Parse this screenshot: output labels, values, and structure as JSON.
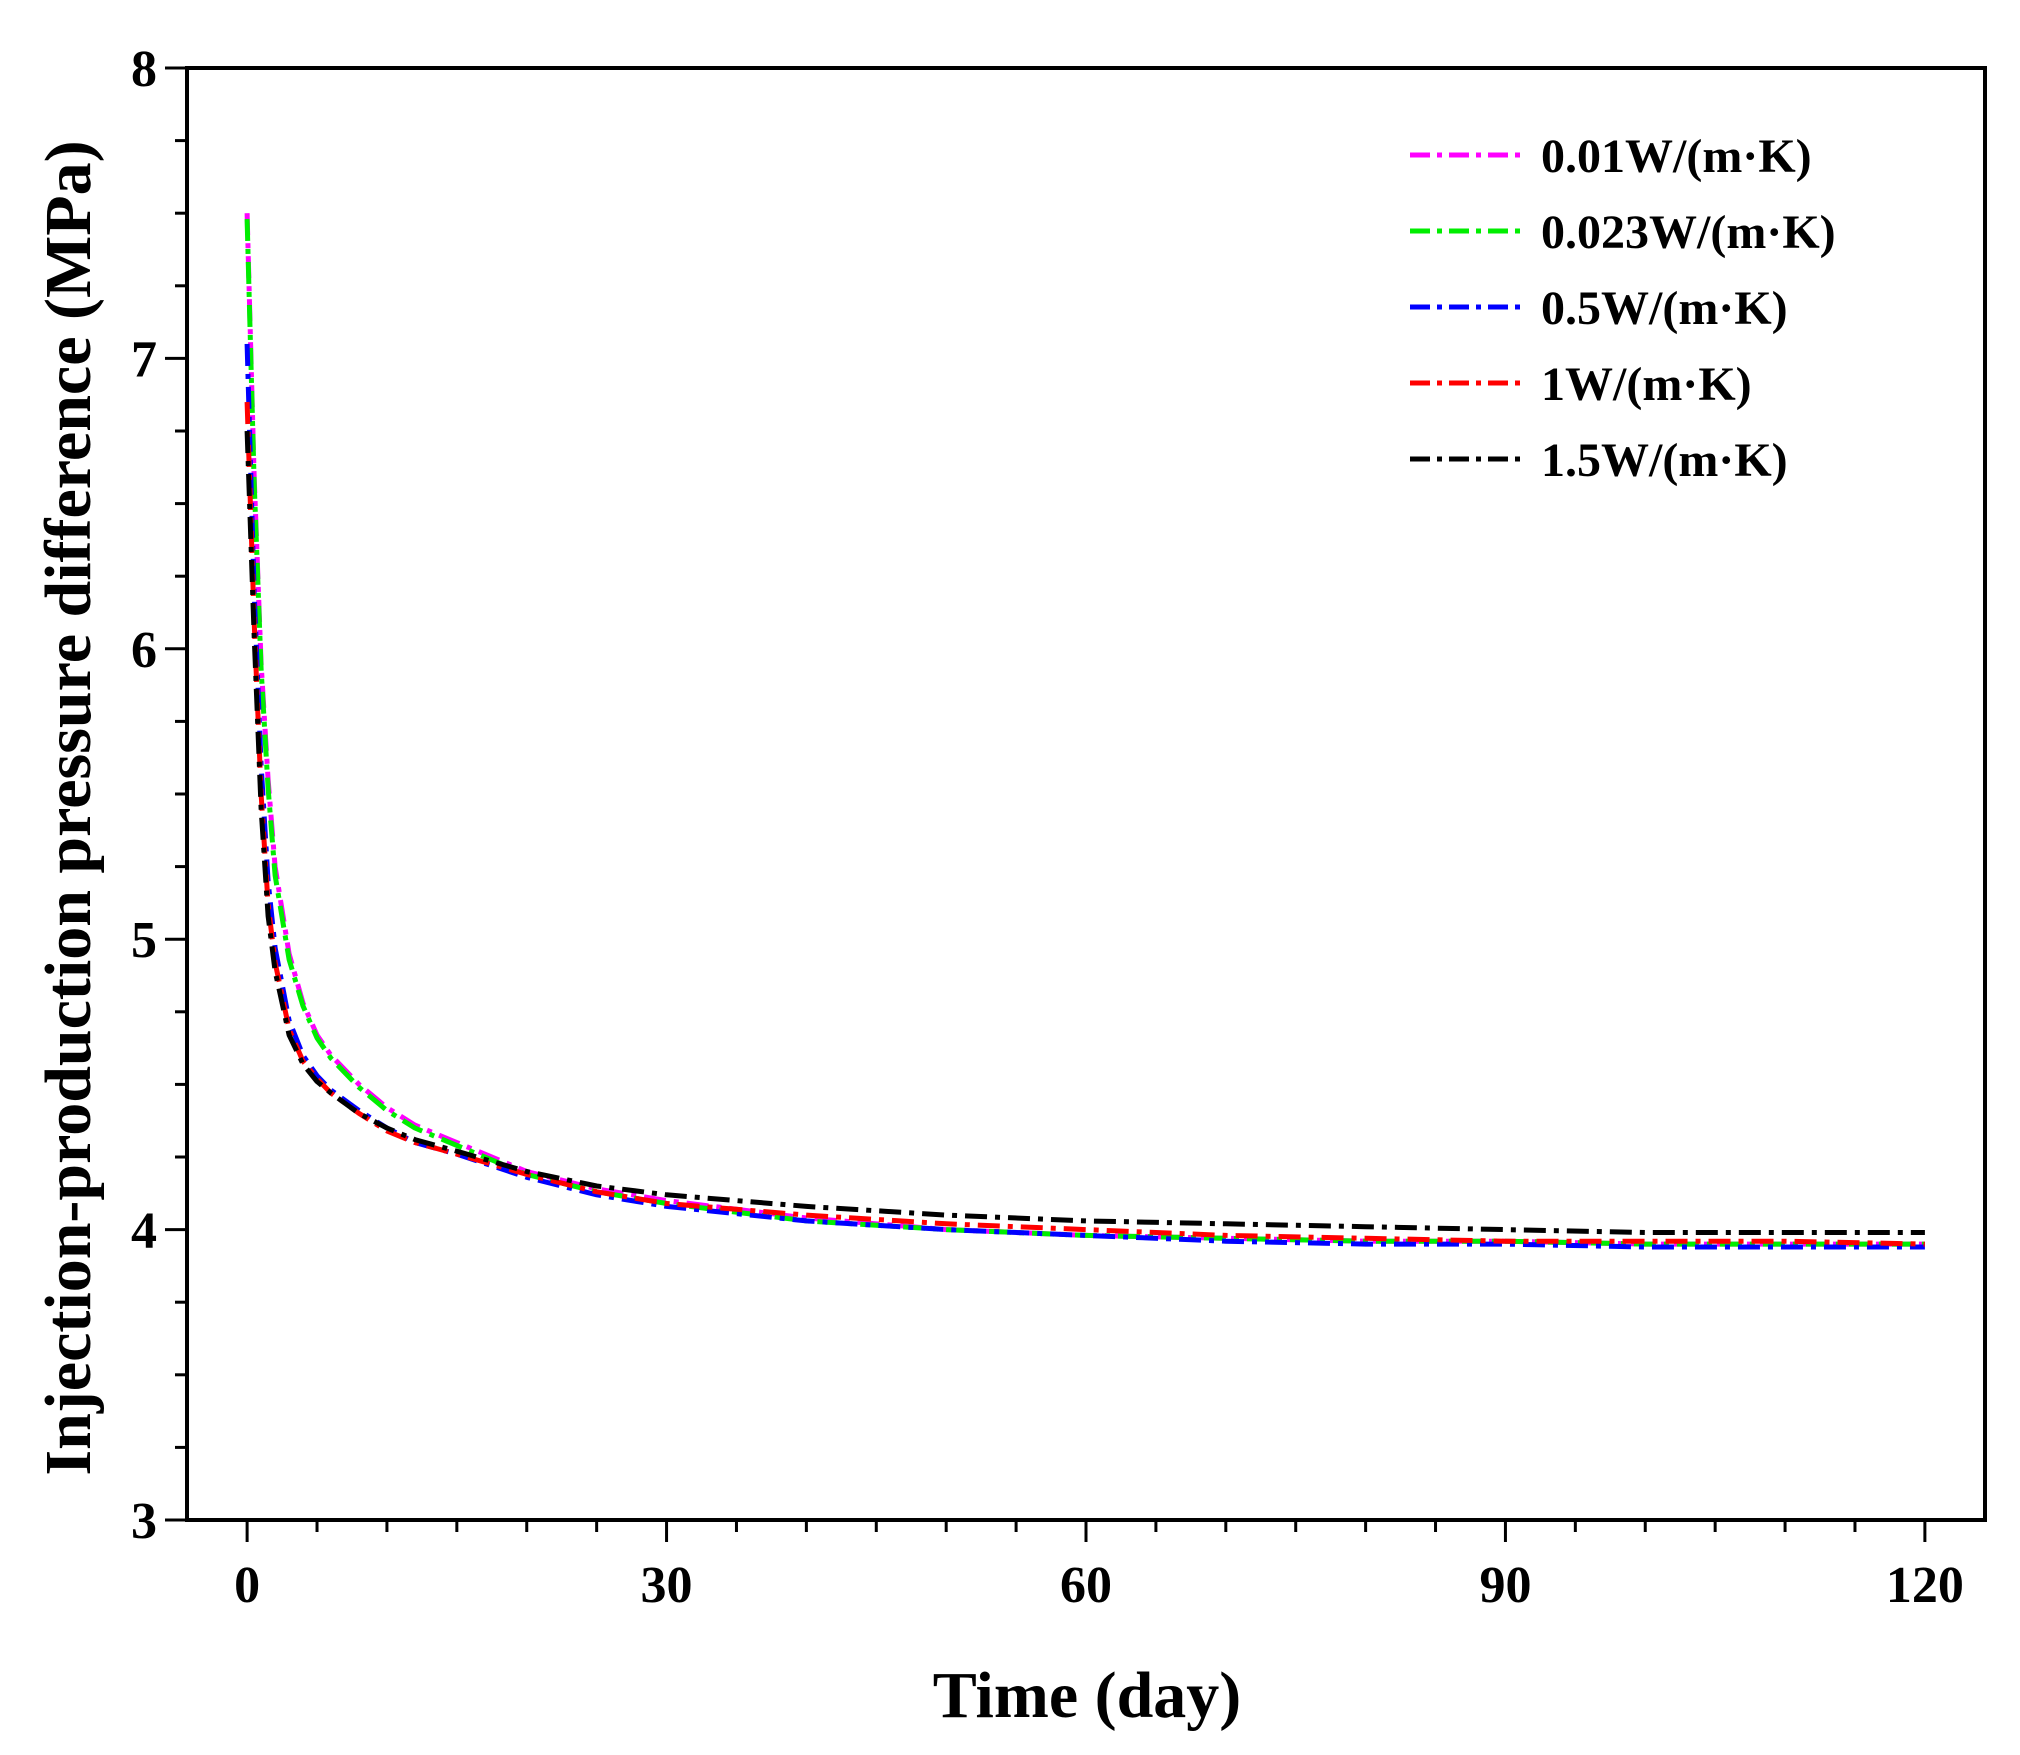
{
  "chart_data": {
    "type": "line",
    "title": "",
    "xlabel": "Time (day)",
    "ylabel": "Injection-production pressure difference (MPa)",
    "xlim": [
      -4.3,
      124.3
    ],
    "ylim": [
      3,
      8
    ],
    "xticks": [
      0,
      30,
      60,
      90,
      120
    ],
    "yticks": [
      3,
      4,
      5,
      6,
      7,
      8
    ],
    "grid": false,
    "legend_position": "top-right",
    "x": [
      0,
      0.5,
      1,
      1.5,
      2,
      3,
      4,
      5,
      6,
      8,
      10,
      12,
      15,
      20,
      25,
      30,
      40,
      50,
      60,
      70,
      80,
      90,
      100,
      110,
      120
    ],
    "series": [
      {
        "name": "0.01W/(m·K)",
        "color": "#ff00ff",
        "values": [
          7.5,
          6.6,
          5.95,
          5.55,
          5.25,
          4.95,
          4.78,
          4.67,
          4.6,
          4.5,
          4.42,
          4.36,
          4.3,
          4.2,
          4.14,
          4.1,
          4.04,
          4.0,
          3.98,
          3.97,
          3.96,
          3.96,
          3.95,
          3.95,
          3.95
        ]
      },
      {
        "name": "0.023W/(m·K)",
        "color": "#00ee00",
        "values": [
          7.48,
          6.58,
          5.93,
          5.52,
          5.22,
          4.93,
          4.77,
          4.66,
          4.59,
          4.49,
          4.41,
          4.35,
          4.29,
          4.19,
          4.13,
          4.09,
          4.03,
          4.0,
          3.98,
          3.97,
          3.96,
          3.96,
          3.95,
          3.95,
          3.95
        ]
      },
      {
        "name": "0.5W/(m·K)",
        "color": "#0000ff",
        "values": [
          7.05,
          6.2,
          5.6,
          5.2,
          4.97,
          4.72,
          4.6,
          4.53,
          4.48,
          4.41,
          4.35,
          4.3,
          4.26,
          4.18,
          4.12,
          4.08,
          4.03,
          4.0,
          3.98,
          3.96,
          3.95,
          3.95,
          3.94,
          3.94,
          3.94
        ]
      },
      {
        "name": "1W/(m·K)",
        "color": "#ff0000",
        "values": [
          6.85,
          6.1,
          5.5,
          5.12,
          4.92,
          4.69,
          4.58,
          4.52,
          4.47,
          4.4,
          4.34,
          4.3,
          4.26,
          4.19,
          4.13,
          4.09,
          4.05,
          4.02,
          4.0,
          3.98,
          3.97,
          3.96,
          3.96,
          3.96,
          3.95
        ]
      },
      {
        "name": "1.5W/(m·K)",
        "color": "#000000",
        "values": [
          6.75,
          6.05,
          5.45,
          5.08,
          4.89,
          4.67,
          4.57,
          4.51,
          4.47,
          4.4,
          4.35,
          4.31,
          4.27,
          4.2,
          4.15,
          4.12,
          4.08,
          4.05,
          4.03,
          4.02,
          4.01,
          4.0,
          3.99,
          3.99,
          3.99
        ]
      }
    ]
  }
}
